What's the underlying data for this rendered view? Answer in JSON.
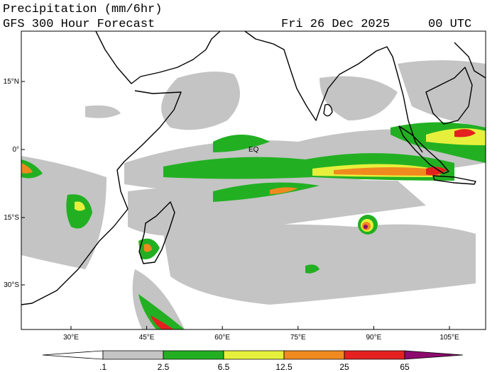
{
  "header": {
    "title": "Precipitation (mm/6hr)",
    "subtitle": "GFS 300 Hour Forecast",
    "date": "Fri 26 Dec 2025",
    "time": "00 UTC"
  },
  "map": {
    "lat_labels": [
      "15°N",
      "0°",
      "15°S",
      "30°S"
    ],
    "lon_labels": [
      "30°E",
      "45°E",
      "60°E",
      "75°E",
      "90°E",
      "105°E"
    ],
    "annotation": "EQ"
  },
  "colorbar": {
    "labels": [
      ".1",
      "2.5",
      "6.5",
      "12.5",
      "25",
      "65"
    ],
    "colors": [
      "#ffffff",
      "#c4c4c4",
      "#22b022",
      "#e6f03c",
      "#f08a1e",
      "#e42020",
      "#8e0a6e"
    ]
  }
}
